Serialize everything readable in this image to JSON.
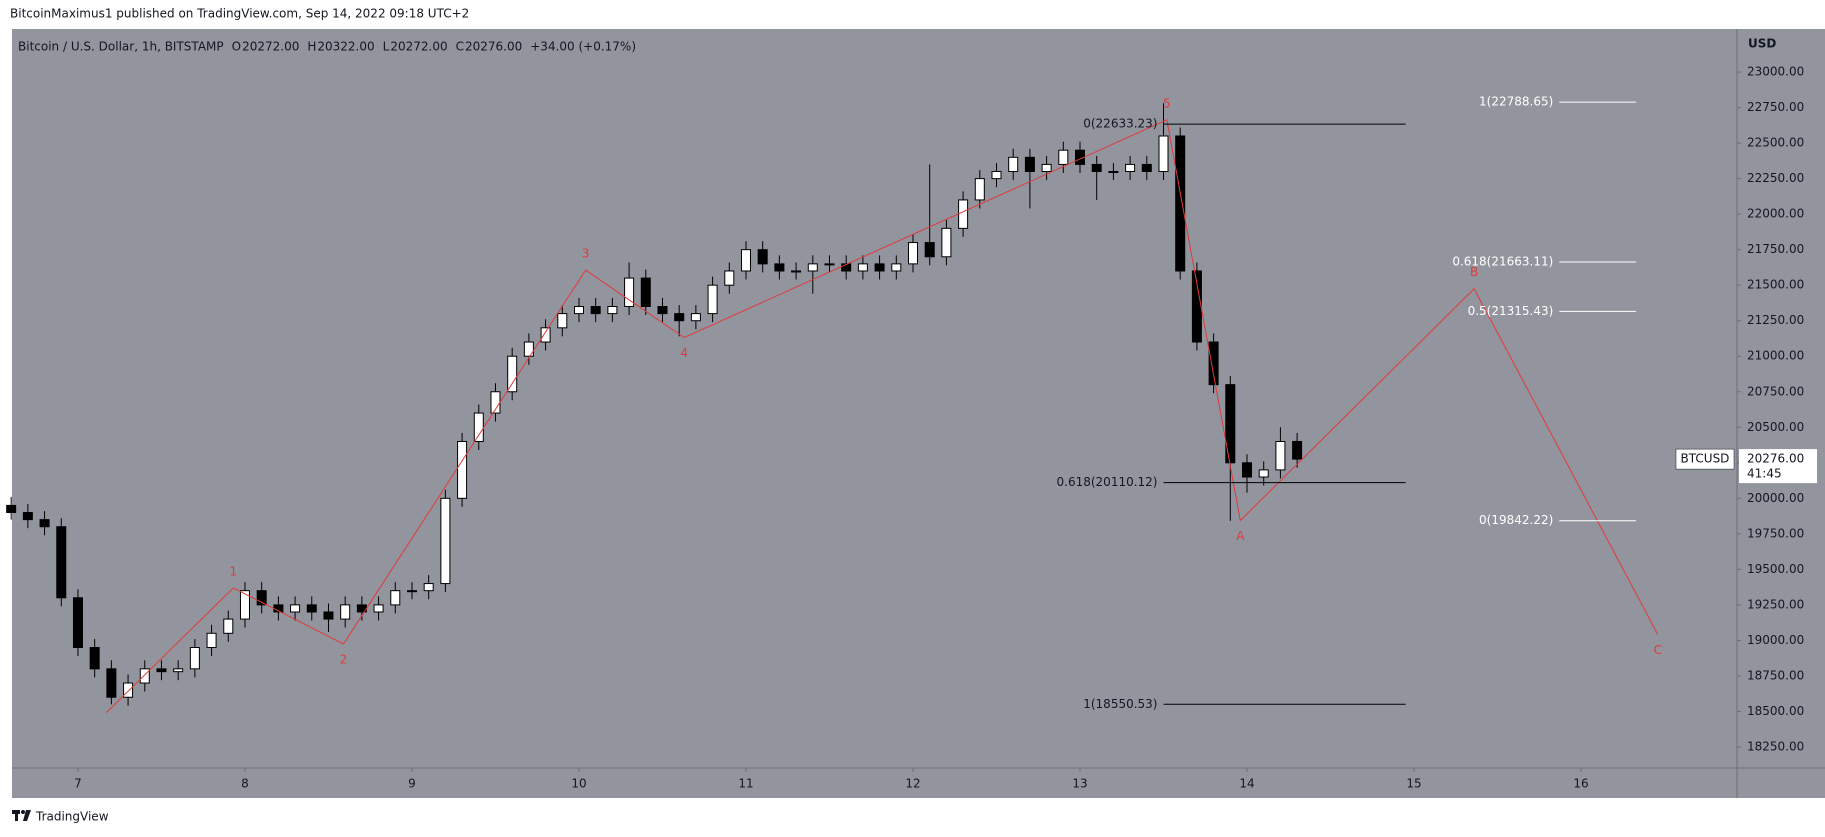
{
  "header": {
    "publisher": "BitcoinMaximus1 published on TradingView.com, Sep 14, 2022 09:18 UTC+2"
  },
  "footer": {
    "brand": "TradingView"
  },
  "chart_data": {
    "type": "candlestick",
    "symbol": "Bitcoin / U.S. Dollar, 1h, BITSTAMP",
    "ohlc_header": [
      {
        "key": "O",
        "value": "20272.00"
      },
      {
        "key": "H",
        "value": "20322.00"
      },
      {
        "key": "L",
        "value": "20272.00"
      },
      {
        "key": "C",
        "value": "20276.00"
      }
    ],
    "change": "+34.00 (+0.17%)",
    "y_axis_title": "USD",
    "xlim": [
      6.605,
      16.934
    ],
    "ylim": [
      18102,
      23303
    ],
    "xticks": [
      7,
      8,
      9,
      10,
      11,
      12,
      13,
      14,
      15,
      16
    ],
    "yticks": [
      {
        "value": 18250,
        "label": "18250.00"
      },
      {
        "value": 18500,
        "label": "18500.00"
      },
      {
        "value": 18750,
        "label": "18750.00"
      },
      {
        "value": 19000,
        "label": "19000.00"
      },
      {
        "value": 19250,
        "label": "19250.00"
      },
      {
        "value": 19500,
        "label": "19500.00"
      },
      {
        "value": 19750,
        "label": "19750.00"
      },
      {
        "value": 20000,
        "label": "20000.00"
      },
      {
        "value": 20250,
        "label": "20250.00"
      },
      {
        "value": 20500,
        "label": "20500.00"
      },
      {
        "value": 20750,
        "label": "20750.00"
      },
      {
        "value": 21000,
        "label": "21000.00"
      },
      {
        "value": 21250,
        "label": "21250.00"
      },
      {
        "value": 21500,
        "label": "21500.00"
      },
      {
        "value": 21750,
        "label": "21750.00"
      },
      {
        "value": 22000,
        "label": "22000.00"
      },
      {
        "value": 22250,
        "label": "22250.00"
      },
      {
        "value": 22500,
        "label": "22500.00"
      },
      {
        "value": 22750,
        "label": "22750.00"
      },
      {
        "value": 23000,
        "label": "23000.00"
      }
    ],
    "up_color": "#ffffff",
    "down_color": "#000000",
    "series": {
      "x": [
        6.6,
        6.7,
        6.8,
        6.9,
        7.0,
        7.1,
        7.2,
        7.3,
        7.4,
        7.5,
        7.6,
        7.7,
        7.8,
        7.9,
        8.0,
        8.1,
        8.2,
        8.3,
        8.4,
        8.5,
        8.6,
        8.7,
        8.8,
        8.9,
        9.0,
        9.1,
        9.2,
        9.3,
        9.4,
        9.5,
        9.6,
        9.7,
        9.8,
        9.9,
        10.0,
        10.1,
        10.2,
        10.3,
        10.4,
        10.5,
        10.6,
        10.7,
        10.8,
        10.9,
        11.0,
        11.1,
        11.2,
        11.3,
        11.4,
        11.5,
        11.6,
        11.7,
        11.8,
        11.9,
        12.0,
        12.1,
        12.2,
        12.3,
        12.4,
        12.5,
        12.6,
        12.7,
        12.8,
        12.9,
        13.0,
        13.1,
        13.2,
        13.3,
        13.4,
        13.5,
        13.6,
        13.7,
        13.8,
        13.9,
        14.0,
        14.1,
        14.2,
        14.3
      ],
      "open": [
        19950,
        19900,
        19850,
        19800,
        19300,
        18950,
        18800,
        18600,
        18700,
        18800,
        18780,
        18800,
        18950,
        19050,
        19150,
        19350,
        19250,
        19200,
        19250,
        19200,
        19150,
        19250,
        19200,
        19250,
        19350,
        19350,
        19400,
        20000,
        20400,
        20600,
        20750,
        21000,
        21100,
        21200,
        21300,
        21350,
        21300,
        21350,
        21550,
        21350,
        21300,
        21250,
        21300,
        21500,
        21600,
        21750,
        21650,
        21600,
        21600,
        21650,
        21650,
        21600,
        21650,
        21600,
        21650,
        21800,
        21700,
        21900,
        22100,
        22250,
        22300,
        22400,
        22300,
        22350,
        22450,
        22350,
        22300,
        22300,
        22350,
        22300,
        22550,
        21600,
        21100,
        20800,
        20250,
        20150,
        20200,
        20400
      ],
      "high": [
        20010,
        19960,
        19910,
        19860,
        19360,
        19010,
        18860,
        18760,
        18860,
        18860,
        18860,
        19010,
        19110,
        19210,
        19410,
        19410,
        19310,
        19310,
        19310,
        19260,
        19310,
        19310,
        19310,
        19410,
        19410,
        19460,
        20060,
        20460,
        20660,
        20810,
        21060,
        21160,
        21260,
        21360,
        21410,
        21410,
        21410,
        21660,
        21610,
        21410,
        21360,
        21360,
        21560,
        21660,
        21810,
        21810,
        21710,
        21660,
        21710,
        21710,
        21710,
        21710,
        21710,
        21710,
        21860,
        22350,
        21960,
        22160,
        22310,
        22360,
        22460,
        22460,
        22410,
        22510,
        22510,
        22410,
        22360,
        22410,
        22410,
        22780,
        22610,
        21660,
        21160,
        20860,
        20310,
        20260,
        20500,
        20460
      ],
      "low": [
        19850,
        19790,
        19740,
        19240,
        18890,
        18740,
        18550,
        18540,
        18640,
        18720,
        18720,
        18740,
        18890,
        18990,
        19090,
        19190,
        19140,
        19140,
        19140,
        19060,
        19090,
        19140,
        19140,
        19190,
        19290,
        19290,
        19340,
        19940,
        20340,
        20540,
        20690,
        20940,
        21040,
        21140,
        21240,
        21240,
        21240,
        21290,
        21290,
        21240,
        21140,
        21190,
        21240,
        21440,
        21540,
        21590,
        21540,
        21540,
        21440,
        21590,
        21540,
        21540,
        21540,
        21540,
        21590,
        21640,
        21640,
        21840,
        22040,
        22190,
        22240,
        22040,
        22240,
        22290,
        22290,
        22100,
        22240,
        22240,
        22240,
        22240,
        21540,
        21040,
        20740,
        19842,
        20040,
        20090,
        20140,
        20216
      ],
      "close": [
        19900,
        19850,
        19800,
        19300,
        18950,
        18800,
        18600,
        18700,
        18800,
        18780,
        18800,
        18950,
        19050,
        19150,
        19350,
        19250,
        19200,
        19250,
        19200,
        19150,
        19250,
        19200,
        19250,
        19350,
        19350,
        19400,
        20000,
        20400,
        20600,
        20750,
        21000,
        21100,
        21200,
        21300,
        21350,
        21300,
        21350,
        21550,
        21350,
        21300,
        21250,
        21300,
        21500,
        21600,
        21750,
        21650,
        21600,
        21600,
        21650,
        21650,
        21600,
        21650,
        21600,
        21650,
        21800,
        21700,
        21900,
        22100,
        22250,
        22300,
        22400,
        22300,
        22350,
        22450,
        22350,
        22300,
        22300,
        22350,
        22300,
        22550,
        21600,
        21100,
        20800,
        20250,
        20150,
        20200,
        20400,
        20276
      ]
    },
    "wave": {
      "color": "#e03a3a",
      "x": [
        7.17,
        7.93,
        8.59,
        10.04,
        10.63,
        13.52,
        13.96,
        15.36,
        16.46
      ],
      "y": [
        18492,
        19369,
        18975,
        21606,
        21131,
        22664,
        19844,
        21475,
        19041
      ],
      "labels": [
        null,
        "1",
        "2",
        "3",
        "4",
        "5",
        "A",
        "B",
        "C"
      ]
    },
    "fib_levels": [
      {
        "color": "#000000",
        "x": [
          13.5,
          14.95
        ],
        "levels": [
          {
            "value": 22633.23,
            "label": "0(22633.23)"
          },
          {
            "value": 20110.12,
            "label": "0.618(20110.12)"
          },
          {
            "value": 18550.53,
            "label": "1(18550.53)"
          }
        ]
      },
      {
        "color": "#ffffff",
        "x": [
          15.87,
          16.33
        ],
        "levels": [
          {
            "value": 22788.65,
            "label": "1(22788.65)"
          },
          {
            "value": 21663.11,
            "label": "0.618(21663.11)"
          },
          {
            "value": 21315.43,
            "label": "0.5(21315.43)"
          },
          {
            "value": 19842.22,
            "label": "0(19842.22)"
          }
        ]
      }
    ],
    "last_price": {
      "label": "BTCUSD",
      "value": 20276,
      "value_label": "20276.00",
      "countdown": "41:45"
    }
  }
}
